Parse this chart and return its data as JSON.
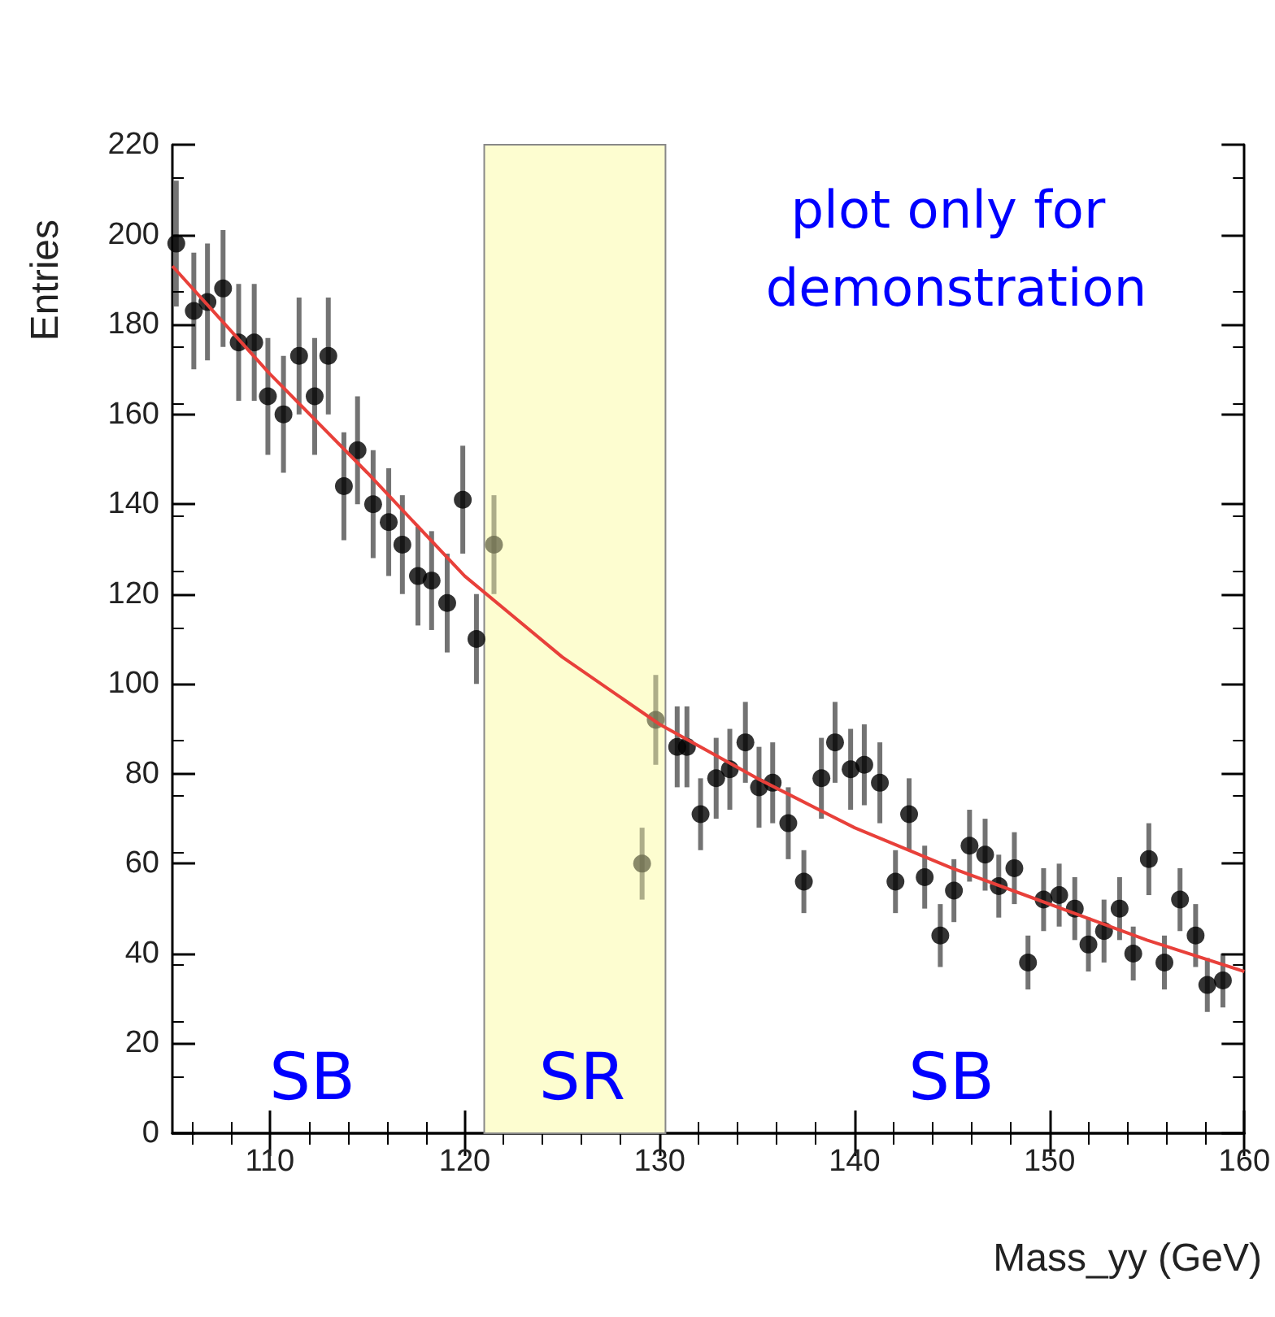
{
  "chart_data": {
    "type": "scatter",
    "xlabel": "Mass_yy (GeV)",
    "ylabel": "Entries",
    "xlim": [
      105,
      160
    ],
    "xticks": [
      110,
      120,
      130,
      140,
      150,
      160
    ],
    "ylim": [
      0,
      220
    ],
    "yticks": [
      0,
      20,
      40,
      60,
      80,
      100,
      120,
      140,
      160,
      180,
      200,
      220
    ],
    "grid": false,
    "marker": "circle",
    "series": [
      {
        "color": "#000000",
        "x": [
          105.2,
          106.1,
          106.8,
          107.6,
          108.4,
          109.2,
          109.9,
          110.7,
          111.5,
          112.3,
          113.0,
          113.8,
          114.5,
          115.3,
          116.1,
          116.8,
          117.6,
          118.3,
          119.1,
          119.9,
          120.6,
          130.9,
          131.4,
          132.1,
          132.9,
          133.6,
          134.4,
          135.1,
          135.8,
          136.6,
          137.4,
          138.3,
          139.0,
          139.8,
          140.5,
          141.3,
          142.1,
          142.8,
          143.6,
          144.4,
          145.1,
          145.9,
          146.7,
          147.4,
          148.2,
          148.9,
          149.7,
          150.5,
          151.3,
          152.0,
          152.8,
          153.6,
          154.3,
          155.1,
          155.9,
          156.7,
          157.5,
          158.1,
          158.9
        ],
        "values": [
          198,
          183,
          185,
          188,
          176,
          176,
          164,
          160,
          173,
          164,
          173,
          144,
          152,
          140,
          136,
          131,
          124,
          123,
          118,
          141,
          110,
          86,
          86,
          71,
          79,
          81,
          87,
          77,
          78,
          69,
          56,
          79,
          87,
          81,
          82,
          78,
          56,
          71,
          57,
          44,
          54,
          64,
          62,
          55,
          59,
          38,
          52,
          53,
          50,
          42,
          45,
          50,
          40,
          61,
          38,
          52,
          44,
          33,
          34
        ],
        "errors": [
          14,
          13,
          13,
          13,
          13,
          13,
          13,
          13,
          13,
          13,
          13,
          12,
          12,
          12,
          12,
          11,
          11,
          11,
          11,
          12,
          10,
          9,
          9,
          8,
          9,
          9,
          9,
          9,
          9,
          8,
          7,
          9,
          9,
          9,
          9,
          9,
          7,
          8,
          7,
          7,
          7,
          8,
          8,
          7,
          8,
          6,
          7,
          7,
          7,
          6,
          7,
          7,
          6,
          8,
          6,
          7,
          7,
          6,
          6
        ]
      },
      {
        "color": "#6b6b4f",
        "x": [
          121.5,
          129.1,
          129.8
        ],
        "values": [
          131,
          60,
          92
        ],
        "errors": [
          11,
          8,
          10
        ]
      },
      {
        "type": "line",
        "color": "#e8403a",
        "marker": "none",
        "x": [
          105,
          110,
          115,
          120,
          125,
          130,
          135,
          140,
          145,
          150,
          155,
          160
        ],
        "values": [
          193,
          169,
          147,
          124,
          106,
          91,
          79,
          68,
          59,
          51,
          43,
          36
        ]
      }
    ],
    "bands": [
      {
        "axis": "x",
        "from": 121,
        "to": 130.3,
        "color": "#fdfdd0"
      }
    ],
    "annotations": [
      "plot only for demonstration",
      "SB",
      "SR",
      "SB"
    ]
  }
}
